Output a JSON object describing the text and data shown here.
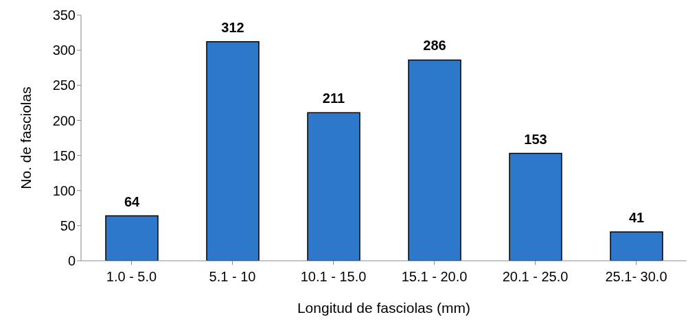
{
  "chart_data": {
    "type": "bar",
    "xlabel": "Longitud de fasciolas (mm)",
    "ylabel": "No. de  fasciolas",
    "categories": [
      "1.0 - 5.0",
      "5.1 - 10",
      "10.1 - 15.0",
      "15.1 - 20.0",
      "20.1 - 25.0",
      "25.1- 30.0"
    ],
    "values": [
      64,
      312,
      211,
      286,
      153,
      41
    ],
    "color": "#2e78cc",
    "ylim": [
      0,
      350
    ],
    "yticks": [
      0,
      50,
      100,
      150,
      200,
      250,
      300,
      350
    ],
    "grid": false,
    "data_labels": true
  }
}
